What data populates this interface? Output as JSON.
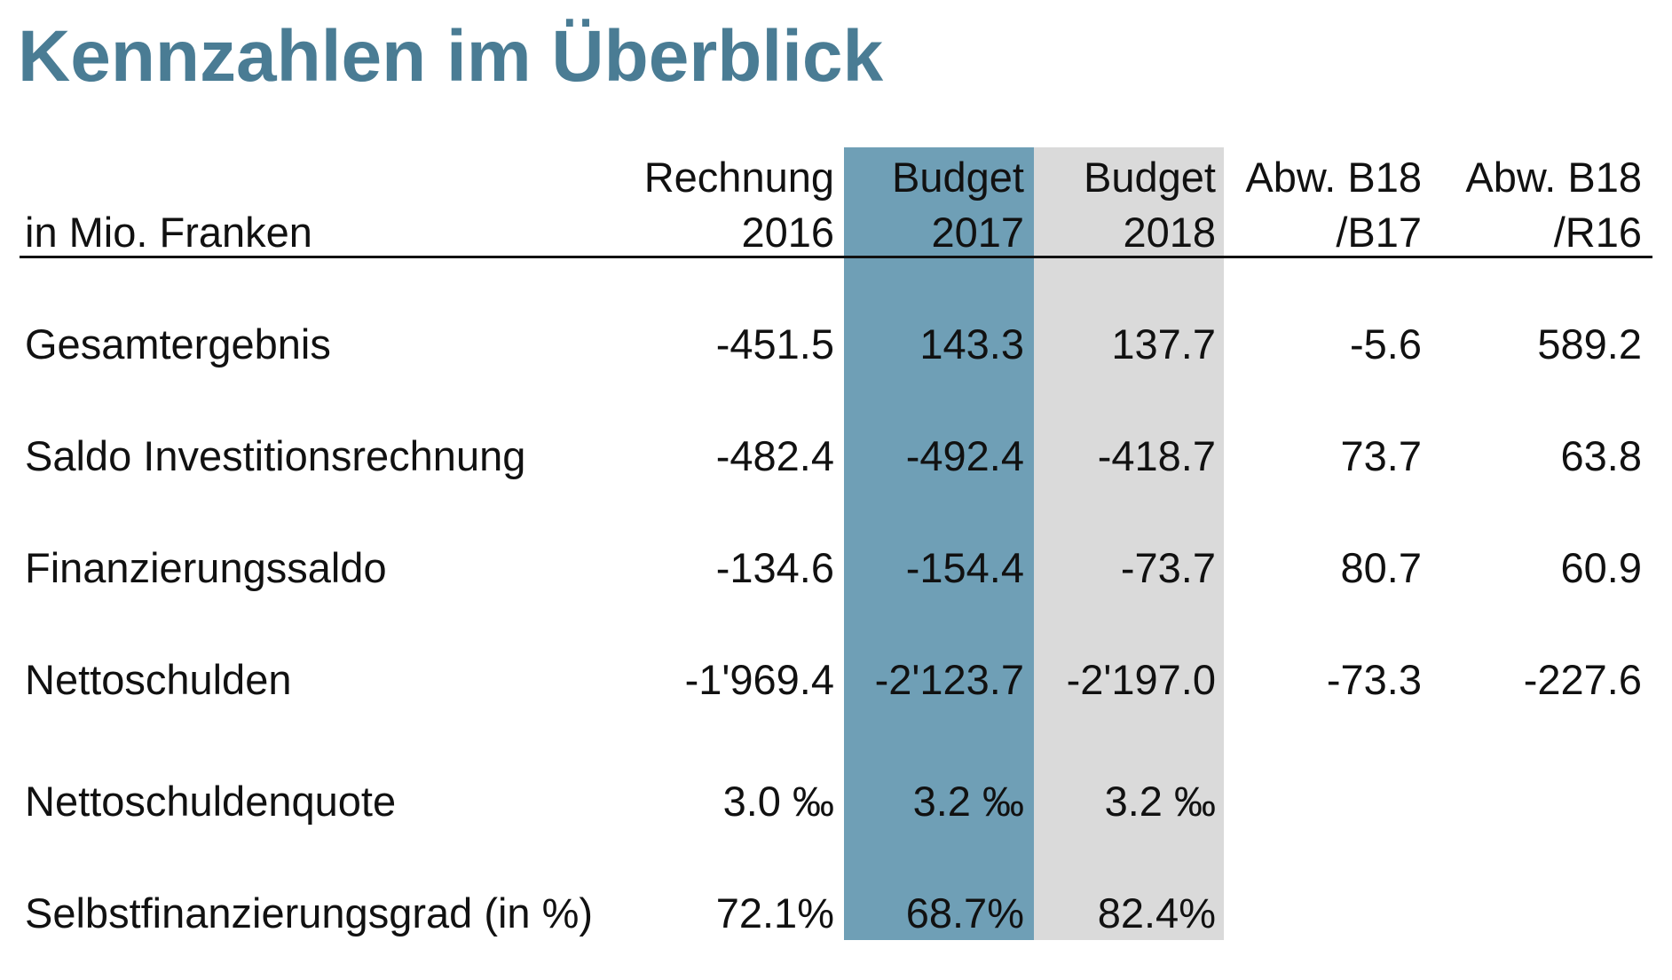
{
  "title": "Kennzahlen im Überblick",
  "table": {
    "unit_label": "in Mio. Franken",
    "columns": [
      {
        "line1": "Rechnung",
        "line2": "2016"
      },
      {
        "line1": "Budget",
        "line2": "2017"
      },
      {
        "line1": "Budget",
        "line2": "2018"
      },
      {
        "line1": "Abw. B18",
        "line2": "/B17"
      },
      {
        "line1": "Abw. B18",
        "line2": "/R16"
      }
    ],
    "rows": [
      {
        "label": "Gesamtergebnis",
        "values": [
          "-451.5",
          "143.3",
          "137.7",
          "-5.6",
          "589.2"
        ]
      },
      {
        "label": "Saldo Investitionsrechnung",
        "values": [
          "-482.4",
          "-492.4",
          "-418.7",
          "73.7",
          "63.8"
        ]
      },
      {
        "label": "Finanzierungssaldo",
        "values": [
          "-134.6",
          "-154.4",
          "-73.7",
          "80.7",
          "60.9"
        ]
      },
      {
        "label": "Nettoschulden",
        "values": [
          "-1'969.4",
          "-2'123.7",
          "-2'197.0",
          "-73.3",
          "-227.6"
        ]
      },
      {
        "label": "Nettoschuldenquote",
        "values": [
          "3.0 ‰",
          "3.2 ‰",
          "3.2 ‰",
          "",
          ""
        ]
      },
      {
        "label": "Selbstfinanzierungsgrad (in %)",
        "values": [
          "72.1%",
          "68.7%",
          "82.4%",
          "",
          ""
        ]
      }
    ]
  },
  "colors": {
    "title": "#4a7c94",
    "budget_2017_fill": "#6f9fb6",
    "budget_2018_fill": "#dadada"
  }
}
